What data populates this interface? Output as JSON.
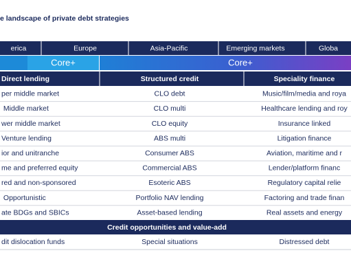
{
  "header": {
    "title": "e landscape of private debt strategies"
  },
  "regions": [
    "erica",
    "Europe",
    "Asia-Pacific",
    "Emerging markets",
    "Globa"
  ],
  "bands": [
    "Core+",
    "Core+"
  ],
  "table": {
    "columns": [
      "Direct lending",
      "Structured credit",
      "Speciality finance"
    ],
    "rows": [
      [
        "per middle market",
        "CLO debt",
        "Music/film/media and roya"
      ],
      [
        " Middle market",
        "CLO multi",
        "Healthcare lending and roy"
      ],
      [
        "wer middle market",
        "CLO equity",
        "Insurance linked"
      ],
      [
        "Venture lending",
        "ABS multi",
        "Litigation finance"
      ],
      [
        "ior and unitranche",
        "Consumer ABS",
        "Aviation, maritime and r"
      ],
      [
        "me and preferred equity",
        "Commercial ABS",
        "Lender/platform financ"
      ],
      [
        "red and non-sponsored",
        "Esoteric ABS",
        "Regulatory capital relie"
      ],
      [
        " Opportunistic",
        "Portfolio NAV lending",
        "Factoring and trade finan"
      ],
      [
        "ate BDGs and SBICs",
        "Asset-based lending",
        "Real assets and energy"
      ]
    ]
  },
  "section": {
    "title": "Credit opportunities and value-add",
    "row": [
      "dit dislocation funds",
      "Special situations",
      "Distressed debt"
    ]
  }
}
